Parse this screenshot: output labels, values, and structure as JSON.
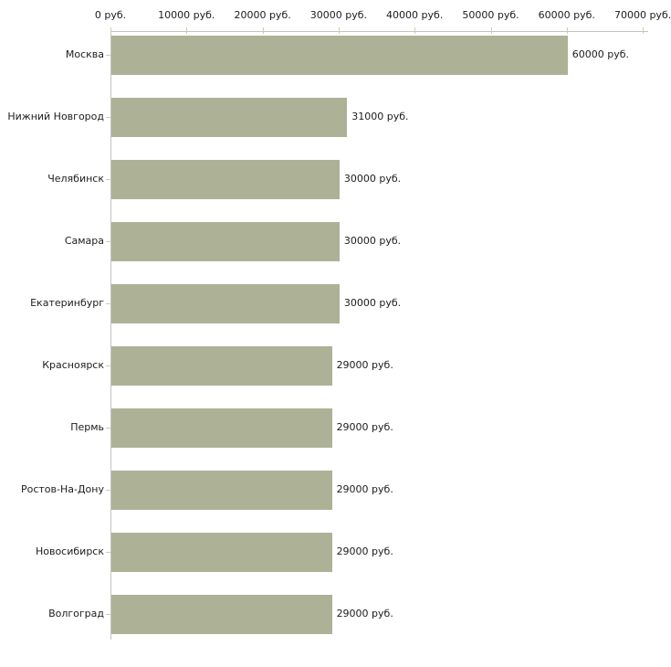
{
  "chart_data": {
    "type": "bar",
    "orientation": "horizontal",
    "title": "",
    "xlabel": "",
    "ylabel": "",
    "unit": "руб.",
    "categories": [
      "Москва",
      "Нижний Новгород",
      "Челябинск",
      "Самара",
      "Екатеринбург",
      "Красноярск",
      "Пермь",
      "Ростов-На-Дону",
      "Новосибирск",
      "Волгоград"
    ],
    "values": [
      60000,
      31000,
      30000,
      30000,
      30000,
      29000,
      29000,
      29000,
      29000,
      29000
    ],
    "value_labels": [
      "60000 руб.",
      "31000 руб.",
      "30000 руб.",
      "30000 руб.",
      "30000 руб.",
      "29000 руб.",
      "29000 руб.",
      "29000 руб.",
      "29000 руб.",
      "29000 руб."
    ],
    "x_tick_values": [
      0,
      10000,
      20000,
      30000,
      40000,
      50000,
      60000,
      70000
    ],
    "x_tick_labels": [
      "0 руб.",
      "10000 руб.",
      "20000 руб.",
      "30000 руб.",
      "40000 руб.",
      "50000 руб.",
      "60000 руб.",
      "70000 руб."
    ],
    "xlim": [
      0,
      70000
    ],
    "grid": false,
    "legend": null,
    "colors": {
      "bar": "#adb297",
      "axis": "#c3c3c3",
      "tick": "#cfcfa8",
      "text": "#1c1c1c",
      "background": "#ffffff"
    }
  }
}
